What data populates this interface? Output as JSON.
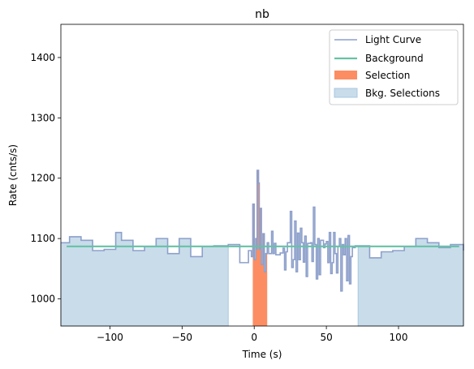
{
  "chart_data": {
    "type": "line",
    "title": "nb",
    "xlabel": "Time (s)",
    "ylabel": "Rate (cnts/s)",
    "xlim": [
      -134,
      145
    ],
    "ylim": [
      955,
      1455
    ],
    "xticks": [
      -100,
      -50,
      0,
      50,
      100
    ],
    "yticks": [
      1000,
      1100,
      1200,
      1300,
      1400
    ],
    "grid": false,
    "legend_position": "top-right",
    "background_level": 1087,
    "colors": {
      "light_curve": "#8da0cb",
      "background": "#66c2a5",
      "selection": "#fc8d62",
      "bkg_selection": "#c9dcea",
      "bkg_selection_edge": "#a8c8e0"
    },
    "series": [
      {
        "name": "Light Curve",
        "type": "step",
        "x": [
          -134,
          -128,
          -120,
          -112,
          -104,
          -96,
          -92,
          -84,
          -76,
          -68,
          -60,
          -52,
          -44,
          -36,
          -28,
          -20,
          -18,
          -10,
          -4,
          -2,
          -1,
          0,
          1,
          1.5,
          2,
          3,
          3.5,
          4,
          5,
          6,
          7,
          8,
          9,
          10,
          12,
          13,
          14,
          15,
          16,
          17,
          18,
          19,
          20,
          21,
          22,
          23,
          24,
          25,
          26,
          27,
          28,
          29,
          30,
          31,
          32,
          33,
          34,
          35,
          36,
          37,
          38,
          39,
          40,
          41,
          42,
          43,
          44,
          45,
          46,
          47,
          48,
          49,
          50,
          51,
          52,
          53,
          54,
          55,
          56,
          57,
          58,
          59,
          60,
          61,
          62,
          63,
          64,
          65,
          66,
          67,
          68,
          70,
          72,
          80,
          88,
          96,
          104,
          112,
          120,
          128,
          136,
          145
        ],
        "y": [
          1093,
          1103,
          1097,
          1080,
          1082,
          1110,
          1097,
          1080,
          1087,
          1100,
          1075,
          1100,
          1070,
          1087,
          1088,
          1088,
          1090,
          1060,
          1080,
          1070,
          1157,
          1065,
          1100,
          1082,
          1213,
          1192,
          1082,
          1150,
          1057,
          1108,
          1045,
          1075,
          1093,
          1075,
          1112,
          1075,
          1092,
          1073,
          1073,
          1073,
          1076,
          1076,
          1084,
          1048,
          1078,
          1093,
          1093,
          1145,
          1052,
          1065,
          1129,
          1045,
          1109,
          1065,
          1117,
          1093,
          1061,
          1104,
          1037,
          1092,
          1092,
          1093,
          1062,
          1152,
          1090,
          1033,
          1100,
          1040,
          1097,
          1097,
          1085,
          1091,
          1095,
          1060,
          1110,
          1042,
          1060,
          1110,
          1075,
          1043,
          1087,
          1100,
          1013,
          1090,
          1073,
          1100,
          1030,
          1105,
          1025,
          1070,
          1085,
          1088,
          1088,
          1068,
          1078,
          1080,
          1087,
          1100,
          1093,
          1085,
          1090,
          1080
        ]
      },
      {
        "name": "Background",
        "type": "line",
        "x": [
          -130,
          142
        ],
        "y": [
          1087,
          1087
        ]
      },
      {
        "name": "Selection",
        "type": "area",
        "range": [
          -1,
          9
        ]
      },
      {
        "name": "Bkg. Selections",
        "type": "area",
        "ranges": [
          [
            -134,
            -18
          ],
          [
            72,
            145
          ]
        ]
      }
    ]
  }
}
